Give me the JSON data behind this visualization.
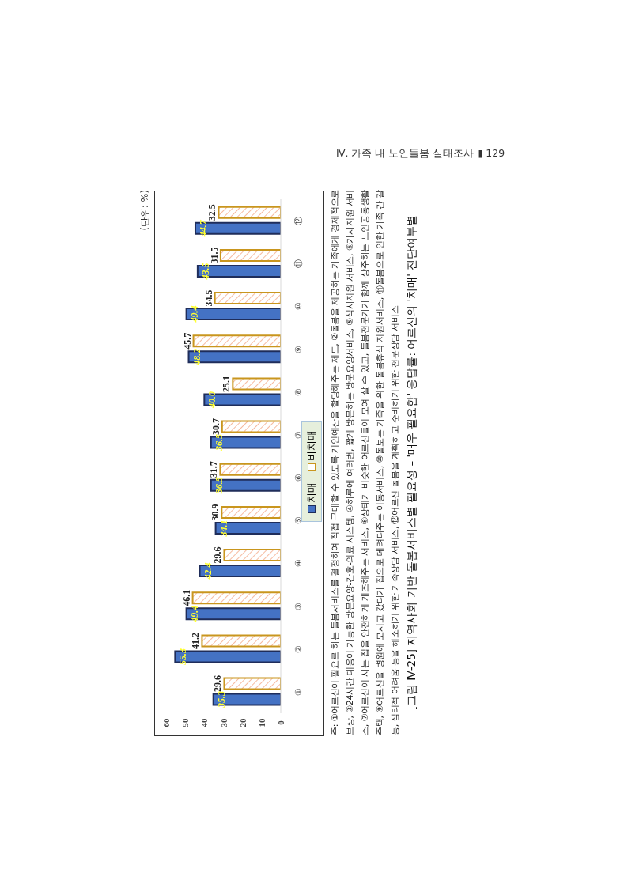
{
  "chart_data": {
    "type": "bar",
    "orientation": "horizontal",
    "title": "[그림 Ⅳ-25] 지역사회 기반 돌봄서비스별 필요성 – '매우 필요함' 응답률: 어르신의 '치매' 진단여부별",
    "categories": [
      "⑫",
      "⑪",
      "⑩",
      "⑨",
      "⑧",
      "⑦",
      "⑥",
      "⑤",
      "④",
      "③",
      "②",
      "①"
    ],
    "series": [
      {
        "name": "치매",
        "color": "#4472c4",
        "values": [
          44.7,
          43.5,
          49.4,
          48.2,
          40.0,
          36.5,
          36.5,
          34.1,
          42.4,
          49.4,
          55.3,
          35.3
        ],
        "value_labels": [
          "44.7",
          "43.5",
          "49.4",
          "48.2",
          "40.0",
          "36.5",
          "36.5",
          "34.1",
          "42.4",
          "49.4",
          "55.3",
          "35.3"
        ]
      },
      {
        "name": "비치매",
        "color": "#c9961e",
        "values": [
          32.5,
          31.5,
          34.5,
          45.7,
          25.1,
          30.7,
          31.7,
          30.9,
          29.6,
          46.1,
          41.2,
          29.6
        ],
        "value_labels": [
          "32.5",
          "31.5",
          "34.5",
          "45.7",
          "25.1",
          "30.7",
          "31.7",
          "30.9",
          "29.6",
          "46.1",
          "41.2",
          "29.6"
        ]
      }
    ],
    "xlim": [
      60,
      0
    ],
    "xticks": [
      0,
      10,
      20,
      30,
      40,
      50,
      60
    ],
    "grid": false,
    "legend": "bottom",
    "annotations": [
      "(단위: %)",
      "주: ①어르신이 필요로 하는 돌봄서비스를 결정하여 직접 구매할 수 있도록 개인예산을 할당해주는 제도, ②돌봄을 제공하는 가족에게 경제적으로 보상, ③24시간 대응이 가능한 방문요양-간호-의료 시스템, ④하루에 여러번, 짧게 방문하는 방문요양서비스, ⑤식사지원 서비스, ⑥가사지원 서비스, ⑦어르신이 사는 집을 안전하게 개조해주는 서비스, ⑧상태가 비슷한 어르신들이 모여 살 수 있고, 돌봄전문가가 함께 상주하는 노인공동생활주택, ⑨어르신을 병원에 모시고 갔다가 집으로 데려다주는 이동서비스, ⑩돌보는 가족을 위한 돌봄휴식 지원서비스, ⑪돌봄으로 인한 가족 간 갈등, 심리적 어려움 등을 해소하기 위한 가족상담 서비스, ⑫어르신 돌봄을 계획하고 준비하기 위한 전문상담 서비스",
      "Ⅳ. 가족 내 노인돌봄 실태조사 ▮ 129"
    ]
  }
}
